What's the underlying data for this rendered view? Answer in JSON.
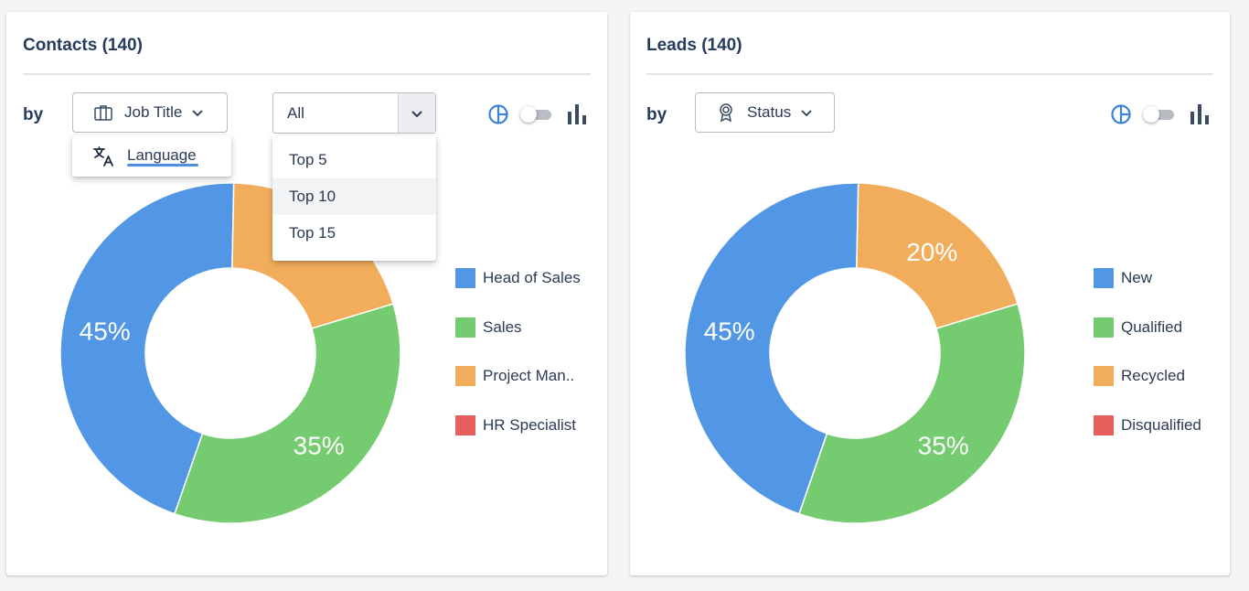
{
  "contacts": {
    "title": "Contacts (140)",
    "by_label": "by",
    "group_button": {
      "label": "Job Title"
    },
    "group_menu": {
      "items": [
        {
          "label": "Language"
        }
      ]
    },
    "limit_select": {
      "value": "All"
    },
    "limit_menu": {
      "items": [
        {
          "label": "Top 5"
        },
        {
          "label": "Top 10"
        },
        {
          "label": "Top 15"
        }
      ]
    },
    "legend": [
      {
        "label": "Head of Sales",
        "color": "#5197e5"
      },
      {
        "label": "Sales",
        "color": "#75cc70"
      },
      {
        "label": "Project Man..",
        "color": "#f2ad5c"
      },
      {
        "label": "HR Specialist",
        "color": "#e65f5c"
      }
    ]
  },
  "leads": {
    "title": "Leads (140)",
    "by_label": "by",
    "group_button": {
      "label": "Status"
    },
    "legend": [
      {
        "label": "New",
        "color": "#5197e5"
      },
      {
        "label": "Qualified",
        "color": "#75cc70"
      },
      {
        "label": "Recycled",
        "color": "#f2ad5c"
      },
      {
        "label": "Disqualified",
        "color": "#e65f5c"
      }
    ]
  },
  "chart_data": [
    {
      "type": "pie",
      "title": "Contacts (140)",
      "categories": [
        "Head of Sales",
        "Sales",
        "Project Man..",
        "HR Specialist"
      ],
      "values": [
        45,
        35,
        20,
        0
      ],
      "value_labels": [
        "45%",
        "35%",
        "",
        ""
      ],
      "colors": [
        "#5197e5",
        "#75cc70",
        "#f2ad5c",
        "#e65f5c"
      ],
      "donut": true,
      "legend": "right"
    },
    {
      "type": "pie",
      "title": "Leads (140)",
      "categories": [
        "New",
        "Qualified",
        "Recycled",
        "Disqualified"
      ],
      "values": [
        45,
        35,
        20,
        0
      ],
      "value_labels": [
        "45%",
        "35%",
        "20%",
        ""
      ],
      "colors": [
        "#5197e5",
        "#75cc70",
        "#f2ad5c",
        "#e65f5c"
      ],
      "donut": true,
      "legend": "right"
    }
  ]
}
